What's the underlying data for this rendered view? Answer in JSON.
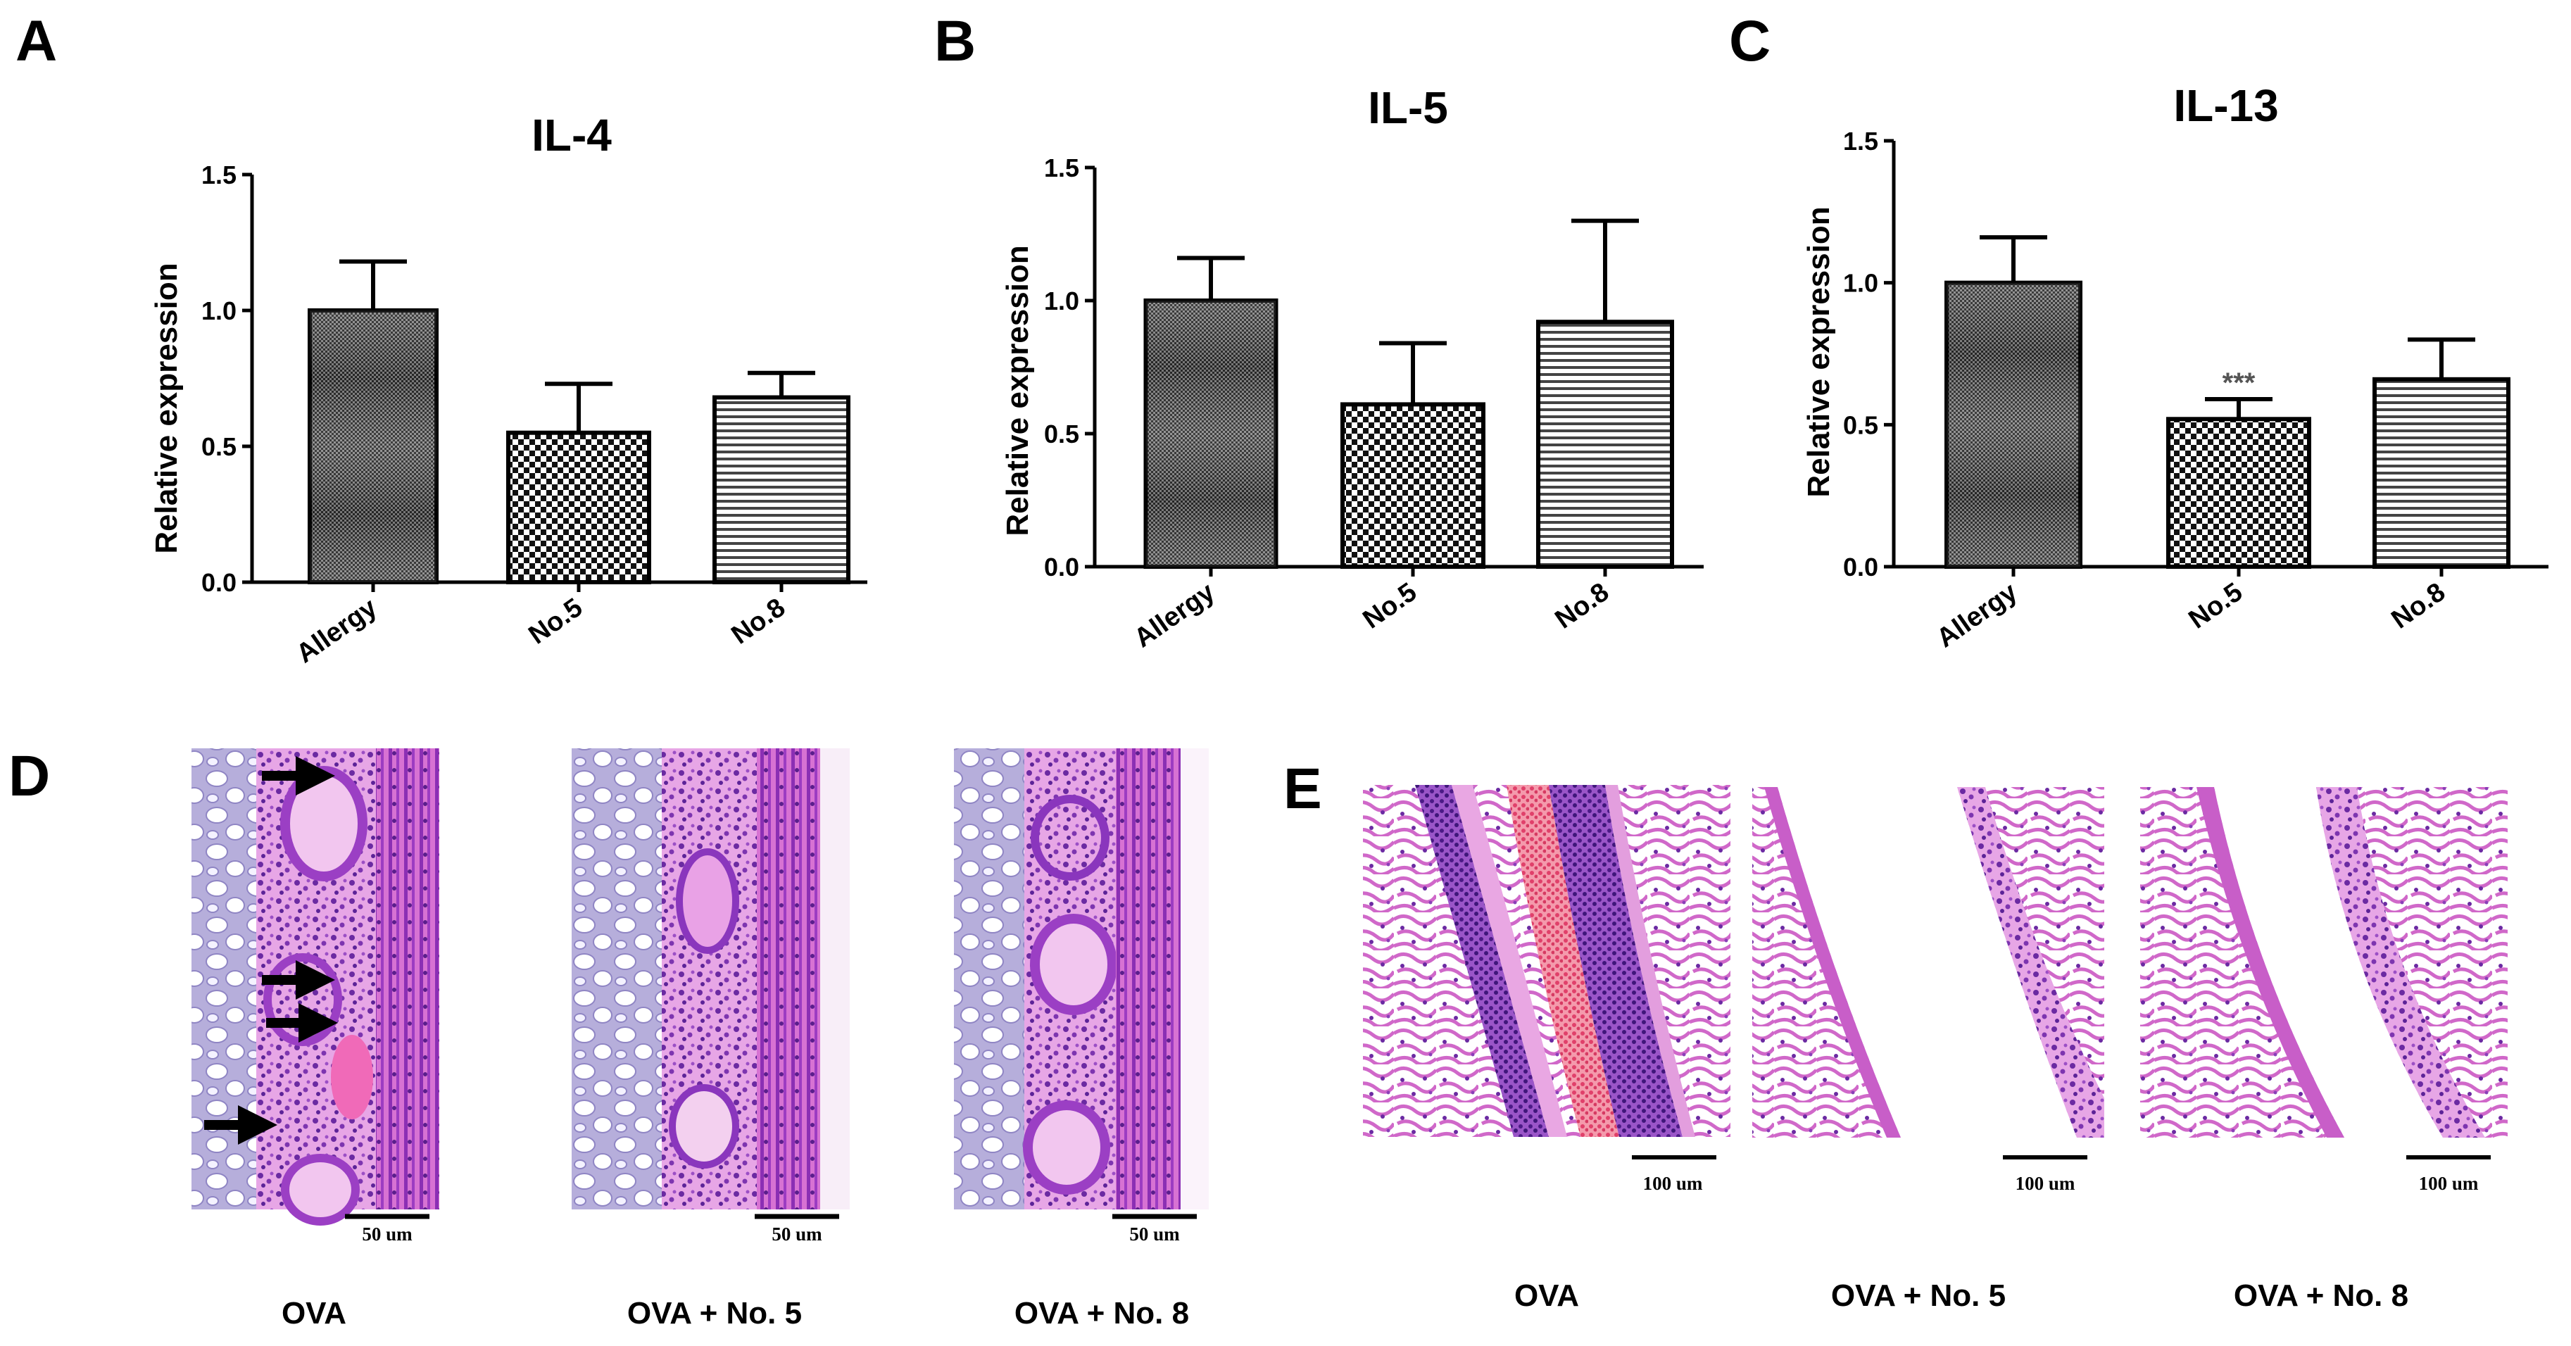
{
  "panel_labels": {
    "a": "A",
    "b": "B",
    "c": "C",
    "d": "D",
    "e": "E"
  },
  "chart_data": [
    {
      "type": "bar",
      "title": "IL-4",
      "ylabel": "Relative expression",
      "xlabel": "",
      "categories": [
        "Allergy",
        "No.5",
        "No.8"
      ],
      "values": [
        1.0,
        0.55,
        0.68
      ],
      "errors": [
        0.18,
        0.18,
        0.09
      ],
      "ylim": [
        0,
        1.5
      ],
      "yticks": [
        "0.0",
        "0.5",
        "1.0",
        "1.5"
      ],
      "annotations": [
        "",
        "",
        ""
      ]
    },
    {
      "type": "bar",
      "title": "IL-5",
      "ylabel": "Relative expression",
      "xlabel": "",
      "categories": [
        "Allergy",
        "No.5",
        "No.8"
      ],
      "values": [
        1.0,
        0.61,
        0.92
      ],
      "errors": [
        0.16,
        0.23,
        0.38
      ],
      "ylim": [
        0,
        1.5
      ],
      "yticks": [
        "0.0",
        "0.5",
        "1.0",
        "1.5"
      ],
      "annotations": [
        "",
        "",
        ""
      ]
    },
    {
      "type": "bar",
      "title": "IL-13",
      "ylabel": "Relative expression",
      "xlabel": "",
      "categories": [
        "Allergy",
        "No.5",
        "No.8"
      ],
      "values": [
        1.0,
        0.52,
        0.66
      ],
      "errors": [
        0.16,
        0.07,
        0.14
      ],
      "ylim": [
        0,
        1.5
      ],
      "yticks": [
        "0.0",
        "0.5",
        "1.0",
        "1.5"
      ],
      "annotations": [
        "",
        "***",
        ""
      ]
    }
  ],
  "histology_d": {
    "captions": [
      "OVA",
      "OVA + No. 5",
      "OVA + No. 8"
    ],
    "scale_label": "50 um"
  },
  "histology_e": {
    "captions": [
      "OVA",
      "OVA + No. 5",
      "OVA + No. 8"
    ],
    "scale_label": "100 um"
  },
  "colors": {
    "tissue_pink": "#d86ad0",
    "tissue_purple": "#8d3cc0",
    "cartilage": "#c9c0e8",
    "blood": "#e8557a"
  }
}
